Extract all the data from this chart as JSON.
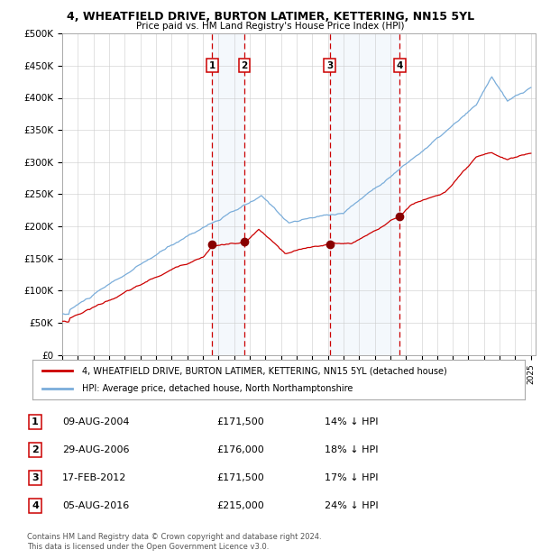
{
  "title": "4, WHEATFIELD DRIVE, BURTON LATIMER, KETTERING, NN15 5YL",
  "subtitle": "Price paid vs. HM Land Registry's House Price Index (HPI)",
  "ylim": [
    0,
    500000
  ],
  "yticks": [
    0,
    50000,
    100000,
    150000,
    200000,
    250000,
    300000,
    350000,
    400000,
    450000,
    500000
  ],
  "ytick_labels": [
    "£0",
    "£50K",
    "£100K",
    "£150K",
    "£200K",
    "£250K",
    "£300K",
    "£350K",
    "£400K",
    "£450K",
    "£500K"
  ],
  "legend_line1": "4, WHEATFIELD DRIVE, BURTON LATIMER, KETTERING, NN15 5YL (detached house)",
  "legend_line2": "HPI: Average price, detached house, North Northamptonshire",
  "transactions": [
    {
      "num": 1,
      "date": "09-AUG-2004",
      "price": "£171,500",
      "pct": "14% ↓ HPI",
      "year": 2004.6
    },
    {
      "num": 2,
      "date": "29-AUG-2006",
      "price": "£176,000",
      "pct": "18% ↓ HPI",
      "year": 2006.66
    },
    {
      "num": 3,
      "date": "17-FEB-2012",
      "price": "£171,500",
      "pct": "17% ↓ HPI",
      "year": 2012.12
    },
    {
      "num": 4,
      "date": "05-AUG-2016",
      "price": "£215,000",
      "pct": "24% ↓ HPI",
      "year": 2016.6
    }
  ],
  "transaction_values": [
    171500,
    176000,
    171500,
    215000
  ],
  "footnote1": "Contains HM Land Registry data © Crown copyright and database right 2024.",
  "footnote2": "This data is licensed under the Open Government Licence v3.0.",
  "red_color": "#cc0000",
  "blue_color": "#7aadda",
  "bg_highlight": "#ddeeff",
  "grid_color": "#cccccc"
}
